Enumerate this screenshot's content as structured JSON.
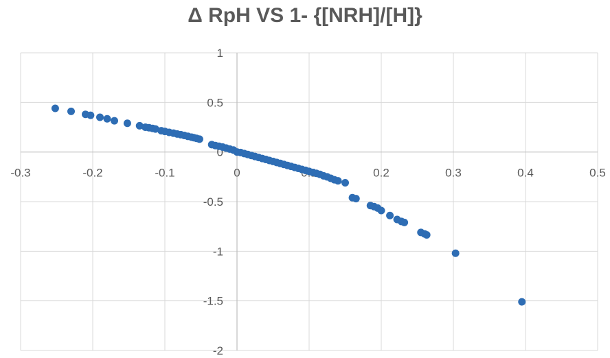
{
  "chart_data": {
    "type": "scatter",
    "title": "Δ RpH VS  1- {[NRH]/[H]}",
    "xlabel": "",
    "ylabel": "",
    "xlim": [
      -0.3,
      0.5
    ],
    "ylim": [
      -2,
      1
    ],
    "xticks": [
      -0.3,
      -0.2,
      -0.1,
      0,
      0.1,
      0.2,
      0.3,
      0.4,
      0.5
    ],
    "yticks": [
      -2,
      -1.5,
      -1,
      -0.5,
      0,
      0.5,
      1
    ],
    "xtick_labels": [
      "-0.3",
      "-0.2",
      "-0.1",
      "0",
      "0.1",
      "0.2",
      "0.3",
      "0.4",
      "0.5"
    ],
    "ytick_labels": [
      "-2",
      "-1.5",
      "-1",
      "-0.5",
      "0",
      "0.5",
      "1"
    ],
    "grid": true,
    "marker_color": "#2E6DB4",
    "series": [
      {
        "points": [
          [
            -0.252,
            0.44
          ],
          [
            -0.23,
            0.41
          ],
          [
            -0.21,
            0.38
          ],
          [
            -0.203,
            0.37
          ],
          [
            -0.19,
            0.35
          ],
          [
            -0.18,
            0.335
          ],
          [
            -0.17,
            0.315
          ],
          [
            -0.152,
            0.29
          ],
          [
            -0.135,
            0.265
          ],
          [
            -0.127,
            0.25
          ],
          [
            -0.122,
            0.245
          ],
          [
            -0.117,
            0.238
          ],
          [
            -0.113,
            0.232
          ],
          [
            -0.105,
            0.215
          ],
          [
            -0.1,
            0.208
          ],
          [
            -0.094,
            0.198
          ],
          [
            -0.088,
            0.19
          ],
          [
            -0.083,
            0.182
          ],
          [
            -0.078,
            0.175
          ],
          [
            -0.073,
            0.167
          ],
          [
            -0.068,
            0.158
          ],
          [
            -0.063,
            0.15
          ],
          [
            -0.06,
            0.145
          ],
          [
            -0.056,
            0.138
          ],
          [
            -0.052,
            0.13
          ],
          [
            -0.035,
            0.075
          ],
          [
            -0.03,
            0.065
          ],
          [
            -0.025,
            0.058
          ],
          [
            -0.02,
            0.05
          ],
          [
            -0.015,
            0.04
          ],
          [
            -0.01,
            0.03
          ],
          [
            -0.005,
            0.02
          ],
          [
            0.0,
            0.0
          ],
          [
            0.005,
            -0.005
          ],
          [
            0.01,
            -0.015
          ],
          [
            0.015,
            -0.025
          ],
          [
            0.02,
            -0.035
          ],
          [
            0.025,
            -0.045
          ],
          [
            0.03,
            -0.055
          ],
          [
            0.035,
            -0.065
          ],
          [
            0.04,
            -0.075
          ],
          [
            0.045,
            -0.085
          ],
          [
            0.05,
            -0.095
          ],
          [
            0.055,
            -0.105
          ],
          [
            0.06,
            -0.115
          ],
          [
            0.065,
            -0.125
          ],
          [
            0.07,
            -0.135
          ],
          [
            0.075,
            -0.145
          ],
          [
            0.08,
            -0.155
          ],
          [
            0.085,
            -0.165
          ],
          [
            0.09,
            -0.175
          ],
          [
            0.095,
            -0.185
          ],
          [
            0.1,
            -0.195
          ],
          [
            0.105,
            -0.205
          ],
          [
            0.11,
            -0.215
          ],
          [
            0.115,
            -0.225
          ],
          [
            0.12,
            -0.24
          ],
          [
            0.125,
            -0.25
          ],
          [
            0.13,
            -0.265
          ],
          [
            0.135,
            -0.28
          ],
          [
            0.14,
            -0.29
          ],
          [
            0.15,
            -0.31
          ],
          [
            0.16,
            -0.46
          ],
          [
            0.165,
            -0.47
          ],
          [
            0.185,
            -0.54
          ],
          [
            0.19,
            -0.55
          ],
          [
            0.195,
            -0.565
          ],
          [
            0.2,
            -0.59
          ],
          [
            0.212,
            -0.64
          ],
          [
            0.222,
            -0.68
          ],
          [
            0.228,
            -0.7
          ],
          [
            0.232,
            -0.71
          ],
          [
            0.255,
            -0.81
          ],
          [
            0.26,
            -0.825
          ],
          [
            0.263,
            -0.835
          ],
          [
            0.303,
            -1.02
          ],
          [
            0.395,
            -1.51
          ]
        ]
      }
    ]
  }
}
